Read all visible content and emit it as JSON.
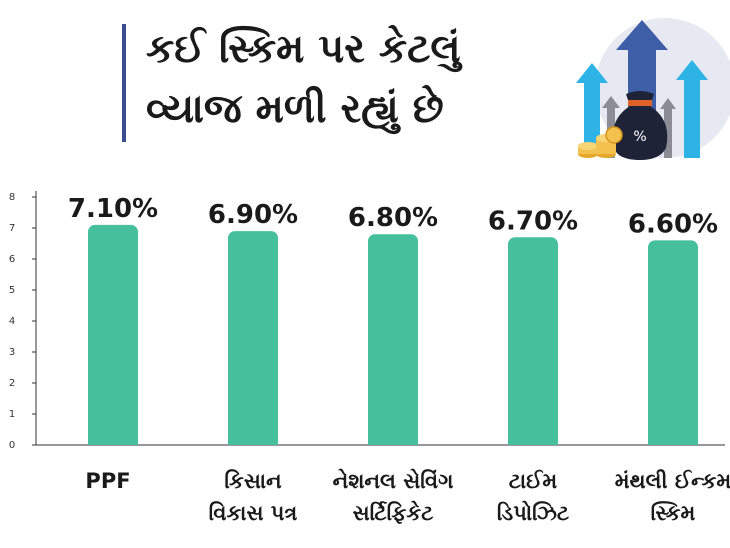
{
  "header": {
    "title_line1": "કઈ સ્કિમ પર કેટલું",
    "title_line2": "વ્યાજ મળી રહ્યું છે"
  },
  "graphic": {
    "icons": [
      "up-arrow-icon",
      "money-bag-icon",
      "coins-icon"
    ],
    "bag_symbol": "%"
  },
  "chart_data": {
    "type": "bar",
    "categories": [
      "PPF",
      "કિસાન વિકાસ પત્ર",
      "નેશનલ સેવિંગ સર્ટિફિકેટ",
      "ટાઈમ ડિપોઝિટ",
      "મંથલી ઈન્કમ સ્કિમ"
    ],
    "category_lines": [
      [
        "PPF"
      ],
      [
        "કિસાન",
        "વિકાસ પત્ર"
      ],
      [
        "નેશનલ સેવિંગ",
        "સર્ટિફિકેટ"
      ],
      [
        "ટાઈમ",
        "ડિપોઝિટ"
      ],
      [
        "મંથલી ઈન્કમ",
        "સ્કિમ"
      ]
    ],
    "values": [
      7.1,
      6.9,
      6.8,
      6.7,
      6.6
    ],
    "data_labels": [
      "7.10%",
      "6.90%",
      "6.80%",
      "6.70%",
      "6.60%"
    ],
    "yticks": [
      "0",
      "1",
      "2",
      "3",
      "4",
      "5",
      "6",
      "7",
      "8"
    ],
    "ylim": [
      0,
      8
    ],
    "bar_color": "#45bf9c",
    "grid": false,
    "legend": "none"
  }
}
